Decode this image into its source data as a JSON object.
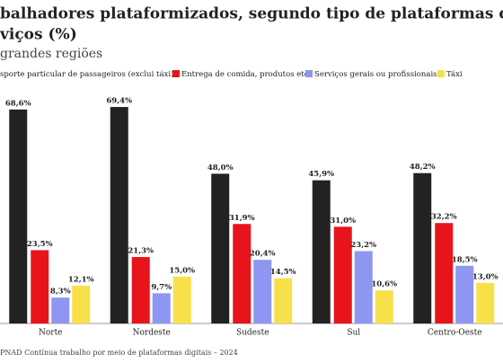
{
  "chart_data": {
    "type": "bar",
    "title": [
      "balhadores plataformizados, segundo tipo de plataformas de",
      "viços (%)"
    ],
    "subtitle": "grandes regiões",
    "source": "PNAD Contínua trabalho por meio de plataformas digitais – 2024",
    "categories": [
      "Norte",
      "Nordeste",
      "Sudeste",
      "Sul",
      "Centro-Oeste"
    ],
    "series": [
      {
        "name": "sporte particular de passageiros (exclui táxi)",
        "color": "#222222",
        "values": [
          68.6,
          69.4,
          48.0,
          45.9,
          48.2
        ],
        "value_labels": [
          "68,6%",
          "69,4%",
          "48,0%",
          "45,9%",
          "48,2%"
        ]
      },
      {
        "name": "Entrega de comida, produtos etc.",
        "color": "#e8141b",
        "values": [
          23.5,
          21.3,
          31.9,
          31.0,
          32.2
        ],
        "value_labels": [
          "23,5%",
          "21,3%",
          "31,9%",
          "31,0%",
          "32,2%"
        ]
      },
      {
        "name": "Serviços gerais ou profissionais",
        "color": "#8f96f2",
        "values": [
          8.3,
          9.7,
          20.4,
          23.2,
          18.5
        ],
        "value_labels": [
          "8,3%",
          "9,7%",
          "20,4%",
          "23,2%",
          "18,5%"
        ]
      },
      {
        "name": "Táxi",
        "color": "#f7e04a",
        "values": [
          12.1,
          15.0,
          14.5,
          10.6,
          13.0
        ],
        "value_labels": [
          "12,1%",
          "15,0%",
          "14,5%",
          "10,6%",
          "13,0%"
        ]
      }
    ],
    "ylim": [
      0,
      70
    ]
  }
}
